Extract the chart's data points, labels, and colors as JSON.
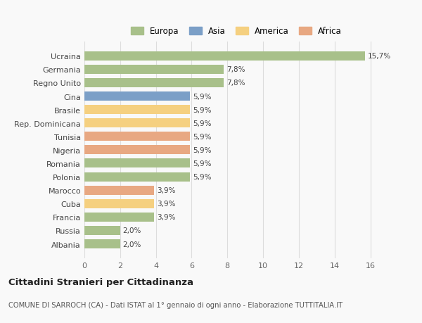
{
  "countries": [
    "Ucraina",
    "Germania",
    "Regno Unito",
    "Cina",
    "Brasile",
    "Rep. Dominicana",
    "Tunisia",
    "Nigeria",
    "Romania",
    "Polonia",
    "Marocco",
    "Cuba",
    "Francia",
    "Russia",
    "Albania"
  ],
  "values": [
    15.7,
    7.8,
    7.8,
    5.9,
    5.9,
    5.9,
    5.9,
    5.9,
    5.9,
    5.9,
    3.9,
    3.9,
    3.9,
    2.0,
    2.0
  ],
  "labels": [
    "15,7%",
    "7,8%",
    "7,8%",
    "5,9%",
    "5,9%",
    "5,9%",
    "5,9%",
    "5,9%",
    "5,9%",
    "5,9%",
    "3,9%",
    "3,9%",
    "3,9%",
    "2,0%",
    "2,0%"
  ],
  "colors": [
    "#a8c08a",
    "#a8c08a",
    "#a8c08a",
    "#7b9fc7",
    "#f5d080",
    "#f5d080",
    "#e8a882",
    "#e8a882",
    "#a8c08a",
    "#a8c08a",
    "#e8a882",
    "#f5d080",
    "#a8c08a",
    "#a8c08a",
    "#a8c08a"
  ],
  "legend_labels": [
    "Europa",
    "Asia",
    "America",
    "Africa"
  ],
  "legend_colors": [
    "#a8c08a",
    "#7b9fc7",
    "#f5d080",
    "#e8a882"
  ],
  "title": "Cittadini Stranieri per Cittadinanza",
  "subtitle": "COMUNE DI SARROCH (CA) - Dati ISTAT al 1° gennaio di ogni anno - Elaborazione TUTTITALIA.IT",
  "xlim": [
    0,
    17
  ],
  "xticks": [
    0,
    2,
    4,
    6,
    8,
    10,
    12,
    14,
    16
  ],
  "background_color": "#f9f9f9",
  "grid_color": "#dddddd",
  "bar_height": 0.68
}
